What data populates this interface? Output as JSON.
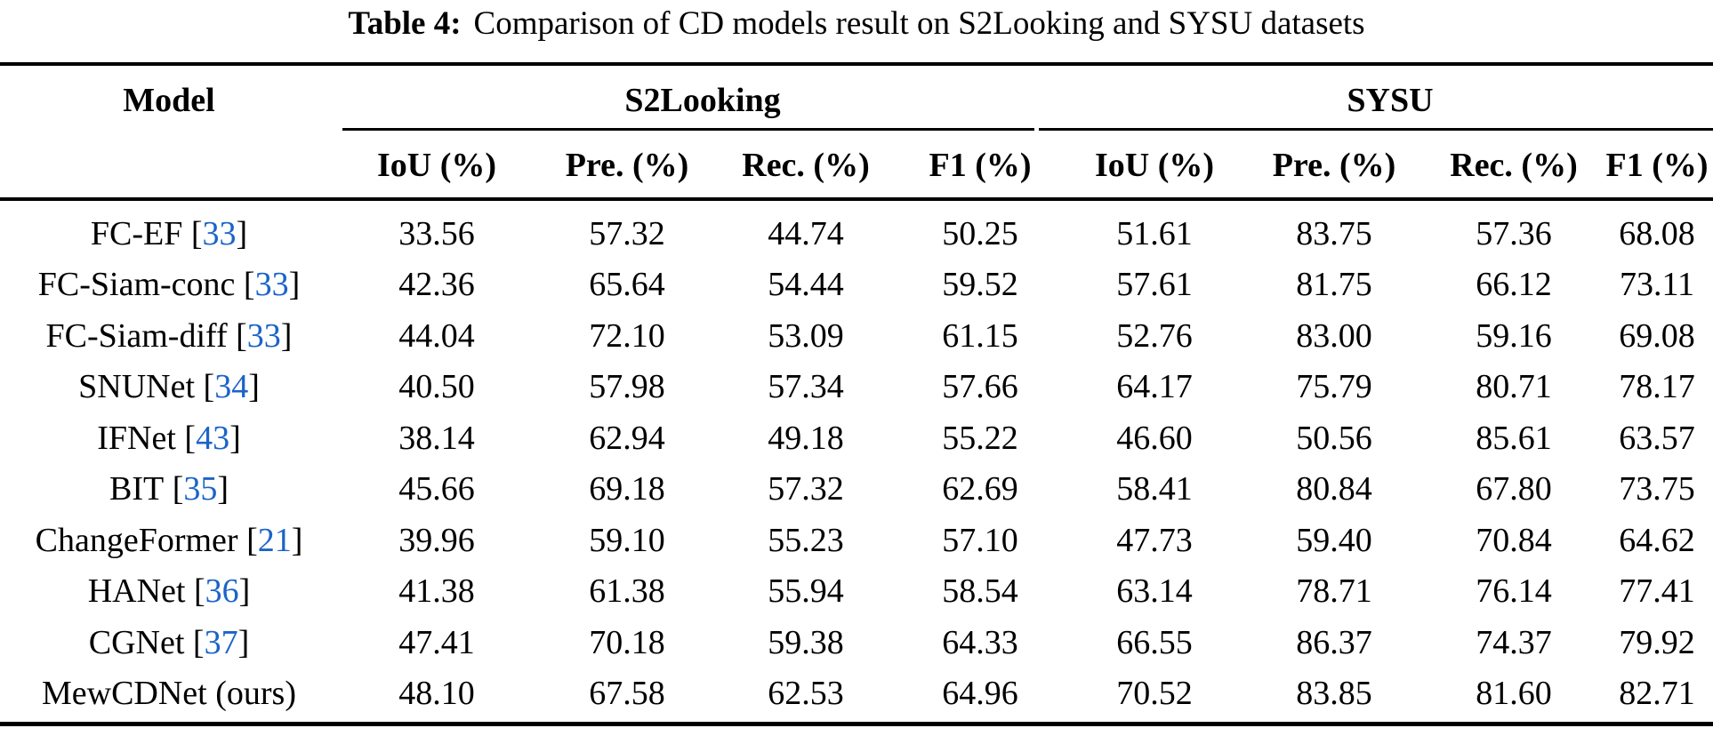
{
  "caption": {
    "label": "Table 4:",
    "text": "Comparison of CD models result on S2Looking and SYSU datasets"
  },
  "table": {
    "model_header": "Model",
    "groups": [
      {
        "label": "S2Looking",
        "columns": [
          "IoU (%)",
          "Pre. (%)",
          "Rec. (%)",
          "F1 (%)"
        ]
      },
      {
        "label": "SYSU",
        "columns": [
          "IoU (%)",
          "Pre. (%)",
          "Rec. (%)",
          "F1 (%)"
        ]
      }
    ],
    "rows": [
      {
        "model": "FC-EF",
        "citation": "33",
        "values": [
          "33.56",
          "57.32",
          "44.74",
          "50.25",
          "51.61",
          "83.75",
          "57.36",
          "68.08"
        ]
      },
      {
        "model": "FC-Siam-conc",
        "citation": "33",
        "values": [
          "42.36",
          "65.64",
          "54.44",
          "59.52",
          "57.61",
          "81.75",
          "66.12",
          "73.11"
        ]
      },
      {
        "model": "FC-Siam-diff",
        "citation": "33",
        "values": [
          "44.04",
          "72.10",
          "53.09",
          "61.15",
          "52.76",
          "83.00",
          "59.16",
          "69.08"
        ]
      },
      {
        "model": "SNUNet",
        "citation": "34",
        "values": [
          "40.50",
          "57.98",
          "57.34",
          "57.66",
          "64.17",
          "75.79",
          "80.71",
          "78.17"
        ]
      },
      {
        "model": "IFNet",
        "citation": "43",
        "values": [
          "38.14",
          "62.94",
          "49.18",
          "55.22",
          "46.60",
          "50.56",
          "85.61",
          "63.57"
        ]
      },
      {
        "model": "BIT",
        "citation": "35",
        "values": [
          "45.66",
          "69.18",
          "57.32",
          "62.69",
          "58.41",
          "80.84",
          "67.80",
          "73.75"
        ]
      },
      {
        "model": "ChangeFormer",
        "citation": "21",
        "values": [
          "39.96",
          "59.10",
          "55.23",
          "57.10",
          "47.73",
          "59.40",
          "70.84",
          "64.62"
        ]
      },
      {
        "model": "HANet",
        "citation": "36",
        "values": [
          "41.38",
          "61.38",
          "55.94",
          "58.54",
          "63.14",
          "78.71",
          "76.14",
          "77.41"
        ]
      },
      {
        "model": "CGNet",
        "citation": "37",
        "values": [
          "47.41",
          "70.18",
          "59.38",
          "64.33",
          "66.55",
          "86.37",
          "74.37",
          "79.92"
        ]
      },
      {
        "model": "MewCDNet (ours)",
        "citation": "",
        "values": [
          "48.10",
          "67.58",
          "62.53",
          "64.96",
          "70.52",
          "83.85",
          "81.60",
          "82.71"
        ]
      }
    ]
  },
  "colors": {
    "citation_blue": "#1b64c8",
    "text_black": "#000000",
    "background": "#ffffff"
  }
}
